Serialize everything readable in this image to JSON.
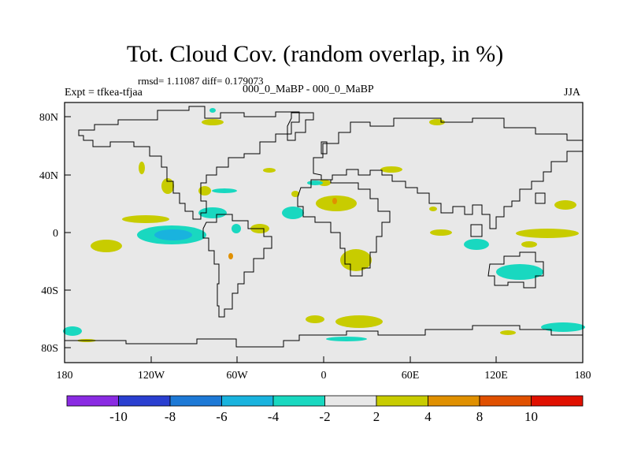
{
  "title": "Tot. Cloud Cov. (random overlap, in %)",
  "stats": "rmsd= 1.11087  diff= 0.179073",
  "experiment": "Expt = tfkea-tfjaa",
  "runs": "000_0_MaBP - 000_0_MaBP",
  "season": "JJA",
  "x_ticks": [
    "180",
    "120W",
    "60W",
    "0",
    "60E",
    "120E",
    "180"
  ],
  "y_ticks": [
    "80N",
    "40N",
    "0",
    "40S",
    "80S"
  ],
  "colorbar": {
    "labels": [
      "-10",
      "-8",
      "-6",
      "-4",
      "-2",
      "2",
      "4",
      "8",
      "10"
    ],
    "colors": [
      "#8a2be2",
      "#2a3fd0",
      "#1d79d6",
      "#19b3de",
      "#19d8c0",
      "#e8e8e8",
      "#c8cc00",
      "#e09000",
      "#e05000",
      "#e01000"
    ]
  },
  "colors": {
    "background_zero": "#e8e8e8",
    "land_outline": "#000000"
  }
}
